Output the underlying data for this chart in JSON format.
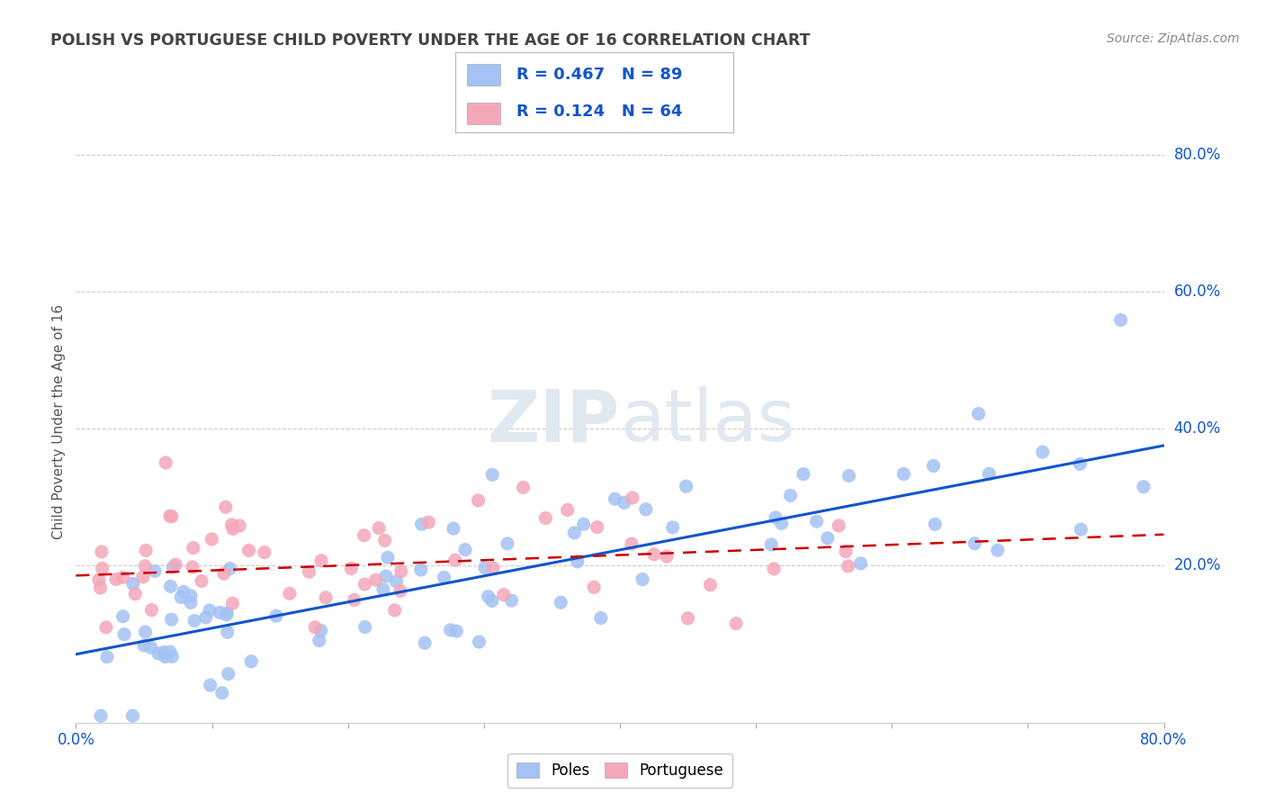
{
  "title": "POLISH VS PORTUGUESE CHILD POVERTY UNDER THE AGE OF 16 CORRELATION CHART",
  "source": "Source: ZipAtlas.com",
  "ylabel": "Child Poverty Under the Age of 16",
  "xlim": [
    0.0,
    0.8
  ],
  "ylim": [
    -0.03,
    0.85
  ],
  "xtick_positions": [
    0.0,
    0.1,
    0.2,
    0.3,
    0.4,
    0.5,
    0.6,
    0.7,
    0.8
  ],
  "xtick_labels": [
    "0.0%",
    "",
    "",
    "",
    "",
    "",
    "",
    "",
    "80.0%"
  ],
  "ytick_positions": [
    0.2,
    0.4,
    0.6,
    0.8
  ],
  "ytick_labels": [
    "20.0%",
    "40.0%",
    "60.0%",
    "80.0%"
  ],
  "poles_color": "#a4c2f4",
  "portuguese_color": "#f4a7b9",
  "poles_line_color": "#1155cc",
  "portuguese_line_color": "#cc0000",
  "tick_label_color": "#1155cc",
  "background_color": "#ffffff",
  "grid_color": "#cccccc",
  "title_color": "#444444",
  "source_color": "#888888",
  "ylabel_color": "#555555",
  "watermark_color": "#e0e8f0",
  "poles_R": 0.467,
  "poles_N": 89,
  "portuguese_R": 0.124,
  "portuguese_N": 64,
  "poles_trend_x0": 0.0,
  "poles_trend_y0": 0.07,
  "poles_trend_x1": 0.8,
  "poles_trend_y1": 0.375,
  "port_trend_x0": 0.0,
  "port_trend_y0": 0.185,
  "port_trend_x1": 0.8,
  "port_trend_y1": 0.245
}
